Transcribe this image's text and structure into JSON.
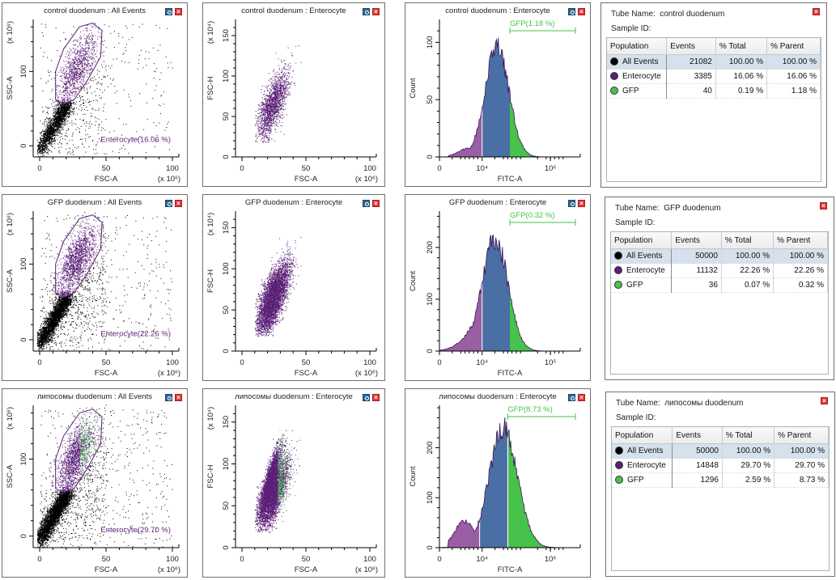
{
  "colors": {
    "all_events": "#000000",
    "enterocyte": "#5b1f78",
    "gfp": "#47c24a",
    "hist_left_fill": "#9a5fa3",
    "hist_mid_fill": "#4a6fa5",
    "hist_outline": "#3f1558",
    "gate_label_enterocyte": "#5b1f78",
    "gate_label_gfp": "#47c24a"
  },
  "rows": [
    {
      "sample": "control duodenum",
      "scatter_all": {
        "title": "control duodenum : All Events",
        "xlabel": "FSC-A",
        "ylabel": "SSC-A",
        "xexp": "(x 10⁶)",
        "yexp": "(x 10⁶)",
        "xticks": [
          "0",
          "50",
          "100"
        ],
        "yticks": [
          "0",
          "100"
        ],
        "gate_label": "Enterocyte(16.06 %)"
      },
      "scatter_ent": {
        "title": "control duodenum : Enterocyte",
        "xlabel": "FSC-A",
        "ylabel": "FSC-H",
        "xexp": "(x 10⁶)",
        "yexp": "(x 10⁴)",
        "xticks": [
          "0",
          "50",
          "100"
        ],
        "yticks": [
          "0",
          "50",
          "100",
          "150"
        ]
      },
      "hist": {
        "title": "control duodenum : Enterocyte",
        "xlabel": "FITC-A",
        "ylabel": "Count",
        "xticks": [
          "0",
          "10⁴",
          "10⁶"
        ],
        "yticks": [
          "0",
          "50",
          "100"
        ],
        "ymax": 120,
        "peak": 97,
        "gate_label": "GFP(1.18 %)"
      },
      "table": {
        "tube_name_label": "Tube Name:",
        "tube_name": "control duodenum",
        "sample_id_label": "Sample ID:",
        "headers": [
          "Population",
          "Events",
          "% Total",
          "% Parent"
        ],
        "rows": [
          {
            "name": "All Events",
            "color": "#000000",
            "events": "21082",
            "total": "100.00 %",
            "parent": "100.00 %"
          },
          {
            "name": "Enterocyte",
            "color": "#5b1f78",
            "events": "3385",
            "total": "16.06 %",
            "parent": "16.06 %"
          },
          {
            "name": "GFP",
            "color": "#47c24a",
            "events": "40",
            "total": "0.19 %",
            "parent": "1.18 %"
          }
        ]
      }
    },
    {
      "sample": "GFP duodenum",
      "scatter_all": {
        "title": "GFP duodenum : All Events",
        "xlabel": "FSC-A",
        "ylabel": "SSC-A",
        "xexp": "(x 10⁶)",
        "yexp": "(x 10⁶)",
        "xticks": [
          "0",
          "50",
          "100"
        ],
        "yticks": [
          "0",
          "100"
        ],
        "gate_label": "Enterocyte(22.26 %)"
      },
      "scatter_ent": {
        "title": "GFP duodenum : Enterocyte",
        "xlabel": "FSC-A",
        "ylabel": "FSC-H",
        "xexp": "(x 10⁶)",
        "yexp": "(x 10⁴)",
        "xticks": [
          "0",
          "50",
          "100"
        ],
        "yticks": [
          "0",
          "50",
          "100",
          "150"
        ]
      },
      "hist": {
        "title": "GFP duodenum : Enterocyte",
        "xlabel": "FITC-A",
        "ylabel": "Count",
        "xticks": [
          "0",
          "10⁴",
          "10⁵"
        ],
        "yticks": [
          "0",
          "100",
          "200"
        ],
        "ymax": 270,
        "peak": 222,
        "gate_label": "GFP(0.32 %)"
      },
      "table": {
        "tube_name_label": "Tube Name:",
        "tube_name": "GFP duodenum",
        "sample_id_label": "Sample ID:",
        "headers": [
          "Population",
          "Events",
          "% Total",
          "% Parent"
        ],
        "rows": [
          {
            "name": "All Events",
            "color": "#000000",
            "events": "50000",
            "total": "100.00 %",
            "parent": "100.00 %"
          },
          {
            "name": "Enterocyte",
            "color": "#5b1f78",
            "events": "11132",
            "total": "22.26 %",
            "parent": "22.26 %"
          },
          {
            "name": "GFP",
            "color": "#47c24a",
            "events": "36",
            "total": "0.07 %",
            "parent": "0.32 %"
          }
        ]
      }
    },
    {
      "sample": "липосомы duodenum",
      "scatter_all": {
        "title": "липосомы duodenum : All Events",
        "xlabel": "FSC-A",
        "ylabel": "SSC-A",
        "xexp": "(x 10⁶)",
        "yexp": "(x 10⁶)",
        "xticks": [
          "0",
          "50",
          "100"
        ],
        "yticks": [
          "0",
          "100"
        ],
        "gate_label": "Enterocyte(29.70 %)"
      },
      "scatter_ent": {
        "title": "липосомы duodenum : Enterocyte",
        "xlabel": "FSC-A",
        "ylabel": "FSC-H",
        "xexp": "(x 10⁶)",
        "yexp": "(x 10⁴)",
        "xticks": [
          "0",
          "50",
          "100"
        ],
        "yticks": [
          "0",
          "50",
          "100",
          "150"
        ]
      },
      "hist": {
        "title": "липосомы duodenum : Enterocyte",
        "xlabel": "FITC-A",
        "ylabel": "Count",
        "xticks": [
          "0",
          "10⁴",
          "10⁶"
        ],
        "yticks": [
          "0",
          "100",
          "200"
        ],
        "ymax": 285,
        "peak": 245,
        "gate_label": "GFP(8.73 %)"
      },
      "table": {
        "tube_name_label": "Tube Name:",
        "tube_name": "липосомы duodenum",
        "sample_id_label": "Sample ID:",
        "headers": [
          "Population",
          "Events",
          "% Total",
          "% Parent"
        ],
        "rows": [
          {
            "name": "All Events",
            "color": "#000000",
            "events": "50000",
            "total": "100.00 %",
            "parent": "100.00 %"
          },
          {
            "name": "Enterocyte",
            "color": "#5b1f78",
            "events": "14848",
            "total": "29.70 %",
            "parent": "29.70 %"
          },
          {
            "name": "GFP",
            "color": "#47c24a",
            "events": "1296",
            "total": "2.59 %",
            "parent": "8.73 %"
          }
        ]
      }
    }
  ],
  "chart_data": [
    {
      "type": "scatter",
      "title": "control duodenum : All Events",
      "xlabel": "FSC-A (x10^6)",
      "ylabel": "SSC-A (x10^6)",
      "xlim": [
        0,
        100
      ],
      "ylim": [
        -15,
        170
      ],
      "gate": "Enterocyte",
      "gate_percent": 16.06
    },
    {
      "type": "scatter",
      "title": "control duodenum : Enterocyte",
      "xlabel": "FSC-A (x10^6)",
      "ylabel": "FSC-H (x10^4)",
      "xlim": [
        0,
        100
      ],
      "ylim": [
        0,
        170
      ]
    },
    {
      "type": "bar",
      "title": "control duodenum : Enterocyte",
      "xlabel": "FITC-A",
      "ylabel": "Count",
      "ylim": [
        0,
        120
      ],
      "peak_count": 97,
      "gate": "GFP",
      "gate_percent": 1.18
    },
    {
      "type": "scatter",
      "title": "GFP duodenum : All Events",
      "xlabel": "FSC-A (x10^6)",
      "ylabel": "SSC-A (x10^6)",
      "xlim": [
        0,
        100
      ],
      "ylim": [
        -15,
        170
      ],
      "gate": "Enterocyte",
      "gate_percent": 22.26
    },
    {
      "type": "scatter",
      "title": "GFP duodenum : Enterocyte",
      "xlabel": "FSC-A (x10^6)",
      "ylabel": "FSC-H (x10^4)",
      "xlim": [
        0,
        100
      ],
      "ylim": [
        0,
        170
      ]
    },
    {
      "type": "bar",
      "title": "GFP duodenum : Enterocyte",
      "xlabel": "FITC-A",
      "ylabel": "Count",
      "ylim": [
        0,
        270
      ],
      "peak_count": 222,
      "gate": "GFP",
      "gate_percent": 0.32
    },
    {
      "type": "scatter",
      "title": "липосомы duodenum : All Events",
      "xlabel": "FSC-A (x10^6)",
      "ylabel": "SSC-A (x10^6)",
      "xlim": [
        0,
        100
      ],
      "ylim": [
        -15,
        170
      ],
      "gate": "Enterocyte",
      "gate_percent": 29.7
    },
    {
      "type": "scatter",
      "title": "липосомы duodenum : Enterocyte",
      "xlabel": "FSC-A (x10^6)",
      "ylabel": "FSC-H (x10^4)",
      "xlim": [
        0,
        100
      ],
      "ylim": [
        0,
        170
      ]
    },
    {
      "type": "bar",
      "title": "липосомы duodenum : Enterocyte",
      "xlabel": "FITC-A",
      "ylabel": "Count",
      "ylim": [
        0,
        285
      ],
      "peak_count": 245,
      "gate": "GFP",
      "gate_percent": 8.73
    }
  ]
}
